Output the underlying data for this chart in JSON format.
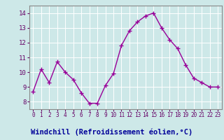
{
  "x": [
    0,
    1,
    2,
    3,
    4,
    5,
    6,
    7,
    8,
    9,
    10,
    11,
    12,
    13,
    14,
    15,
    16,
    17,
    18,
    19,
    20,
    21,
    22,
    23
  ],
  "y": [
    8.7,
    10.2,
    9.3,
    10.7,
    10.0,
    9.5,
    8.6,
    7.9,
    7.9,
    9.1,
    9.9,
    11.8,
    12.8,
    13.4,
    13.8,
    14.0,
    13.0,
    12.2,
    11.6,
    10.5,
    9.6,
    9.3,
    9.0,
    9.0
  ],
  "line_color": "#990099",
  "marker_color": "#990099",
  "bg_color": "#cde8e8",
  "grid_color": "#bbdddd",
  "xlabel": "Windchill (Refroidissement éolien,°C)",
  "xlabel_color": "#000099",
  "xlabel_bg": "#9999cc",
  "ylim": [
    7.5,
    14.5
  ],
  "xlim": [
    -0.5,
    23.5
  ],
  "yticks": [
    8,
    9,
    10,
    11,
    12,
    13,
    14
  ],
  "xtick_labels": [
    "0",
    "1",
    "2",
    "3",
    "4",
    "5",
    "6",
    "7",
    "8",
    "9",
    "10",
    "11",
    "12",
    "13",
    "14",
    "15",
    "16",
    "17",
    "18",
    "19",
    "20",
    "21",
    "22",
    "23"
  ],
  "tick_color": "#660066",
  "spine_color": "#888888"
}
